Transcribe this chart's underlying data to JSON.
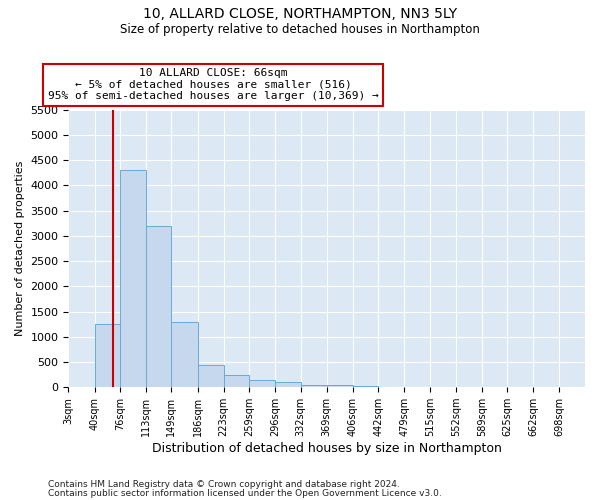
{
  "title1": "10, ALLARD CLOSE, NORTHAMPTON, NN3 5LY",
  "title2": "Size of property relative to detached houses in Northampton",
  "xlabel": "Distribution of detached houses by size in Northampton",
  "ylabel": "Number of detached properties",
  "footnote1": "Contains HM Land Registry data © Crown copyright and database right 2024.",
  "footnote2": "Contains public sector information licensed under the Open Government Licence v3.0.",
  "annotation_title": "10 ALLARD CLOSE: 66sqm",
  "annotation_line1": "← 5% of detached houses are smaller (516)",
  "annotation_line2": "95% of semi-detached houses are larger (10,369) →",
  "bar_color": "#c5d8ee",
  "bar_edge_color": "#6aaad4",
  "vline_color": "#cc0000",
  "vline_x": 66,
  "annotation_box_facecolor": "#ffffff",
  "annotation_box_edgecolor": "#cc0000",
  "background_color": "#dce9f5",
  "ylim": [
    0,
    5500
  ],
  "yticks": [
    0,
    500,
    1000,
    1500,
    2000,
    2500,
    3000,
    3500,
    4000,
    4500,
    5000,
    5500
  ],
  "bin_edges": [
    3,
    40,
    76,
    113,
    149,
    186,
    223,
    259,
    296,
    332,
    369,
    406,
    442,
    479,
    515,
    552,
    589,
    625,
    662,
    698,
    735
  ],
  "bin_counts": [
    0,
    1250,
    4300,
    3200,
    1300,
    450,
    250,
    150,
    100,
    50,
    50,
    30,
    5,
    5,
    5,
    2,
    2,
    2,
    1,
    1
  ]
}
